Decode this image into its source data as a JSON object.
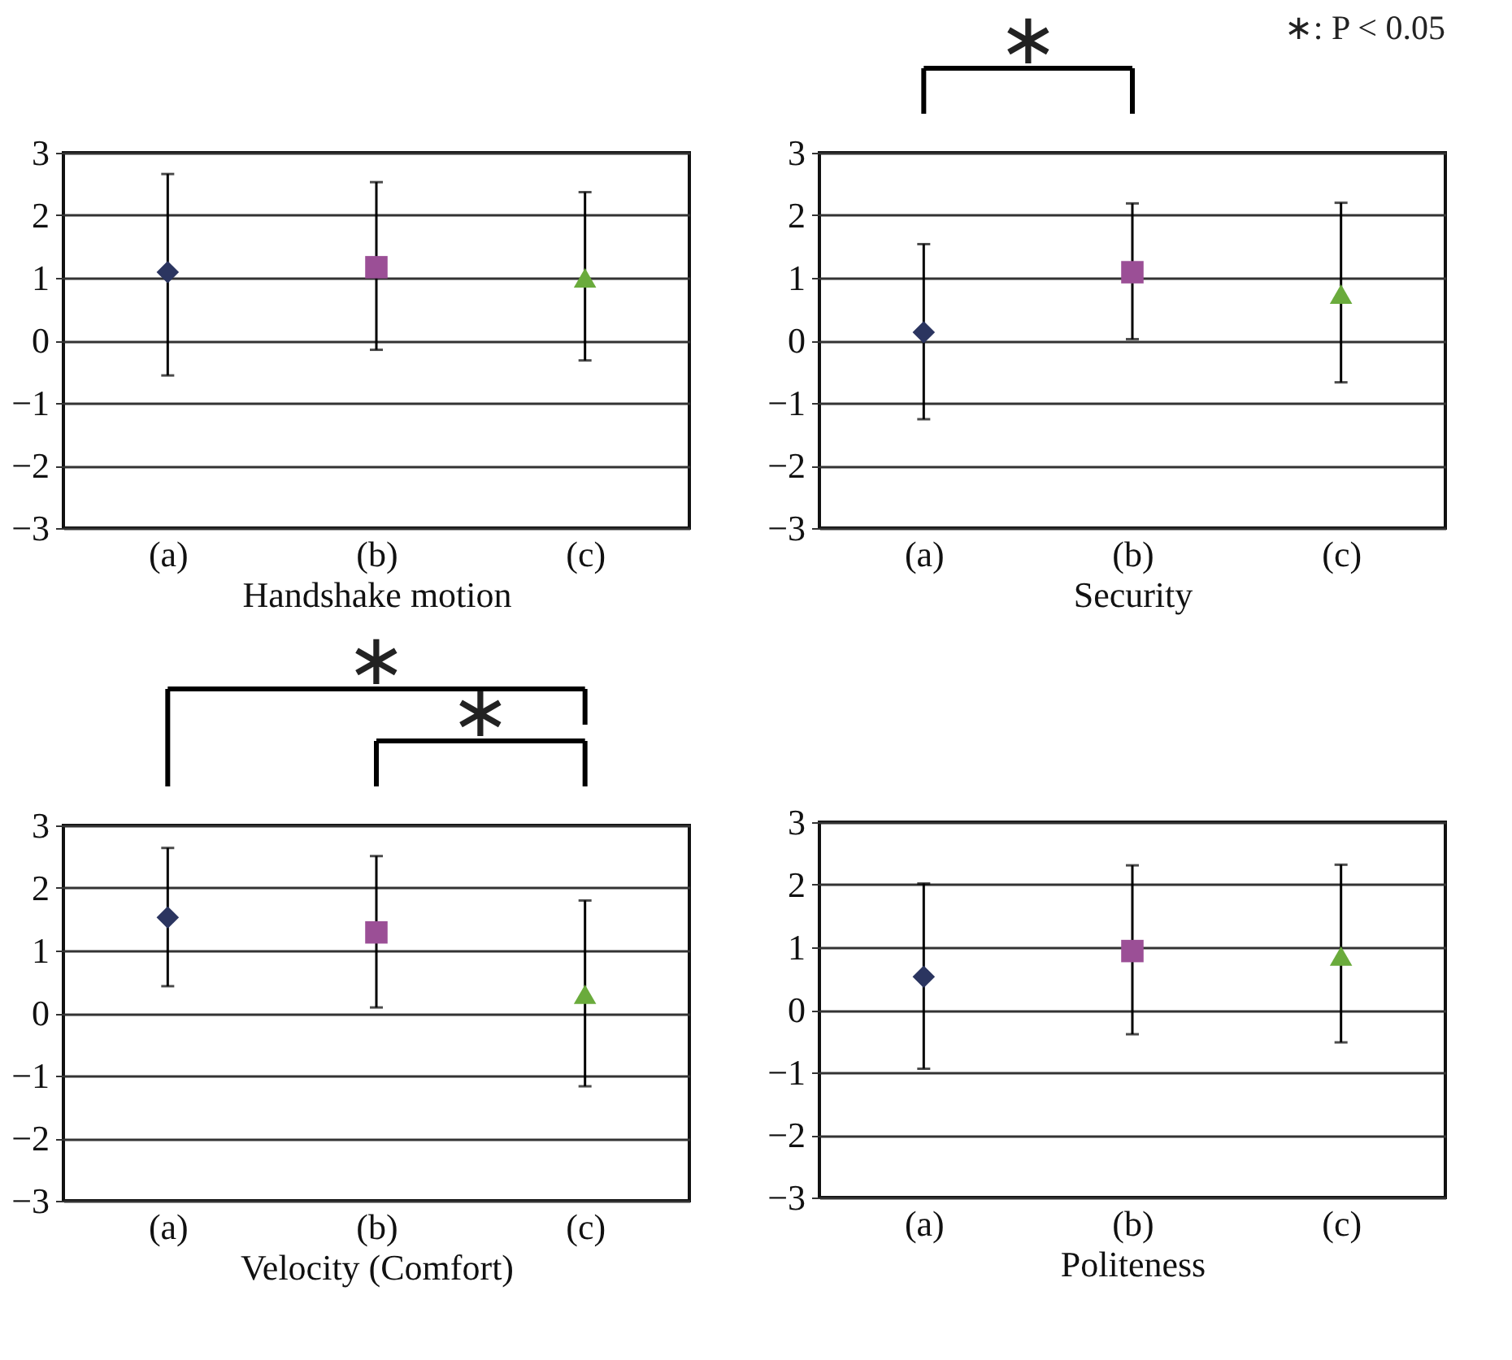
{
  "chart_data": [
    {
      "type": "scatter",
      "categories": [
        "(a)",
        "(b)",
        "(c)"
      ],
      "xlabel": "Handshake motion",
      "ylim": [
        -3,
        3
      ],
      "yticks": [
        -3,
        -2,
        -1,
        0,
        1,
        2,
        3
      ],
      "grid": "y",
      "series": [
        {
          "color": "#2b3560",
          "marker": "diamond",
          "values": [
            1.09,
            null,
            null
          ],
          "errors": [
            [
              -0.56,
              2.66
            ],
            null,
            null
          ]
        },
        {
          "color": "#9b4f96",
          "marker": "square",
          "values": [
            null,
            1.17,
            null
          ],
          "errors": [
            null,
            [
              -0.15,
              2.53
            ],
            null
          ]
        },
        {
          "color": "#6aab3c",
          "marker": "triangle",
          "values": [
            null,
            null,
            1.0
          ],
          "errors": [
            null,
            null,
            [
              -0.32,
              2.37
            ]
          ]
        }
      ]
    },
    {
      "type": "scatter",
      "categories": [
        "(a)",
        "(b)",
        "(c)"
      ],
      "xlabel": "Security",
      "ylim": [
        -3,
        3
      ],
      "yticks": [
        -3,
        -2,
        -1,
        0,
        1,
        2,
        3
      ],
      "grid": "y",
      "annotations": [
        "∗: P < 0.05",
        "∗"
      ],
      "series": [
        {
          "color": "#2b3560",
          "marker": "diamond",
          "values": [
            0.13,
            null,
            null
          ],
          "errors": [
            [
              -1.26,
              1.54
            ],
            null,
            null
          ]
        },
        {
          "color": "#9b4f96",
          "marker": "square",
          "values": [
            null,
            1.09,
            null
          ],
          "errors": [
            null,
            [
              0.02,
              2.19
            ],
            null
          ]
        },
        {
          "color": "#6aab3c",
          "marker": "triangle",
          "values": [
            null,
            null,
            0.74
          ],
          "errors": [
            null,
            null,
            [
              -0.67,
              2.2
            ]
          ]
        }
      ]
    },
    {
      "type": "scatter",
      "categories": [
        "(a)",
        "(b)",
        "(c)"
      ],
      "xlabel": "Velocity (Comfort)",
      "ylim": [
        -3,
        3
      ],
      "yticks": [
        -3,
        -2,
        -1,
        0,
        1,
        2,
        3
      ],
      "grid": "y",
      "annotations": [
        "∗",
        "∗"
      ],
      "series": [
        {
          "color": "#2b3560",
          "marker": "diamond",
          "values": [
            1.53,
            null,
            null
          ],
          "errors": [
            [
              0.43,
              2.64
            ],
            null,
            null
          ]
        },
        {
          "color": "#9b4f96",
          "marker": "square",
          "values": [
            null,
            1.29,
            null
          ],
          "errors": [
            null,
            [
              0.09,
              2.51
            ],
            null
          ]
        },
        {
          "color": "#6aab3c",
          "marker": "triangle",
          "values": [
            null,
            null,
            0.3
          ],
          "errors": [
            null,
            null,
            [
              -1.17,
              1.8
            ]
          ]
        }
      ]
    },
    {
      "type": "scatter",
      "categories": [
        "(a)",
        "(b)",
        "(c)"
      ],
      "xlabel": "Politeness",
      "ylim": [
        -3,
        3
      ],
      "yticks": [
        -3,
        -2,
        -1,
        0,
        1,
        2,
        3
      ],
      "grid": "y",
      "series": [
        {
          "color": "#2b3560",
          "marker": "diamond",
          "values": [
            0.53,
            null,
            null
          ],
          "errors": [
            [
              -0.94,
              2.02
            ],
            null,
            null
          ]
        },
        {
          "color": "#9b4f96",
          "marker": "square",
          "values": [
            null,
            0.94,
            null
          ],
          "errors": [
            null,
            [
              -0.39,
              2.31
            ],
            null
          ]
        },
        {
          "color": "#6aab3c",
          "marker": "triangle",
          "values": [
            null,
            null,
            0.86
          ],
          "errors": [
            null,
            null,
            [
              -0.52,
              2.32
            ]
          ]
        }
      ]
    }
  ]
}
